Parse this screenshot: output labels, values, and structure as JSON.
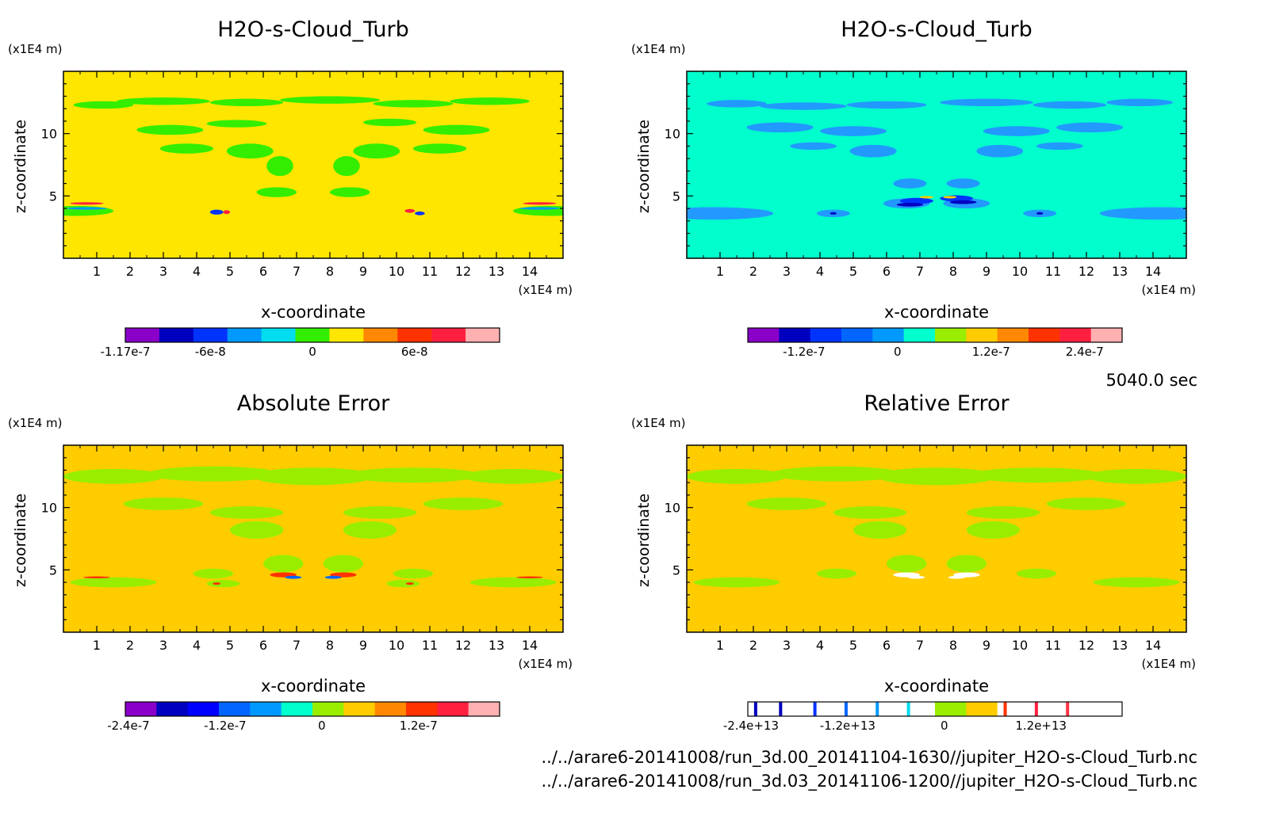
{
  "chart_data": [
    {
      "type": "heatmap",
      "title": "H2O-s-Cloud_Turb",
      "xlabel": "x-coordinate",
      "ylabel": "z-coordinate",
      "x_unit": "(x1E4 m)",
      "y_unit": "(x1E4 m)",
      "x_ticks": [
        "1",
        "2",
        "3",
        "4",
        "5",
        "6",
        "7",
        "8",
        "9",
        "10",
        "11",
        "12",
        "13",
        "14"
      ],
      "y_ticks": [
        "5",
        "10"
      ],
      "xlim": [
        0,
        15
      ],
      "ylim": [
        0,
        15
      ],
      "background_color": "#ffe600",
      "feature_color": "#33ee00",
      "colorbar": {
        "colors": [
          "#8a00c8",
          "#0000c0",
          "#0033ff",
          "#0099ff",
          "#00ddee",
          "#33ee00",
          "#ffe600",
          "#ff8800",
          "#ff3300",
          "#ff2040",
          "#ffb0b0"
        ],
        "tick_labels": [
          "-1.17e-7",
          "-6e-8",
          "0",
          "6e-8"
        ],
        "tick_positions": [
          0,
          2.5,
          5.5,
          8.5
        ]
      }
    },
    {
      "type": "heatmap",
      "title": "H2O-s-Cloud_Turb",
      "xlabel": "x-coordinate",
      "ylabel": "z-coordinate",
      "x_unit": "(x1E4 m)",
      "y_unit": "(x1E4 m)",
      "x_ticks": [
        "1",
        "2",
        "3",
        "4",
        "5",
        "6",
        "7",
        "8",
        "9",
        "10",
        "11",
        "12",
        "13",
        "14"
      ],
      "y_ticks": [
        "5",
        "10"
      ],
      "xlim": [
        0,
        15
      ],
      "ylim": [
        0,
        15
      ],
      "background_color": "#00ffcc",
      "feature_color": "#2299ff",
      "colorbar": {
        "colors": [
          "#8a00c8",
          "#0000c0",
          "#0033ff",
          "#0066ff",
          "#0099ff",
          "#00ffcc",
          "#99ee00",
          "#ffcc00",
          "#ff8800",
          "#ff3300",
          "#ff2040",
          "#ffb0b0"
        ],
        "tick_labels": [
          "-1.2e-7",
          "0",
          "1.2e-7",
          "2.4e-7"
        ],
        "tick_positions": [
          1.8,
          4.8,
          7.8,
          10.8
        ]
      }
    },
    {
      "type": "heatmap",
      "title": "Absolute Error",
      "xlabel": "x-coordinate",
      "ylabel": "z-coordinate",
      "x_unit": "(x1E4 m)",
      "y_unit": "(x1E4 m)",
      "x_ticks": [
        "1",
        "2",
        "3",
        "4",
        "5",
        "6",
        "7",
        "8",
        "9",
        "10",
        "11",
        "12",
        "13",
        "14"
      ],
      "y_ticks": [
        "5",
        "10"
      ],
      "xlim": [
        0,
        15
      ],
      "ylim": [
        0,
        15
      ],
      "background_color": "#ffcc00",
      "feature_color": "#99ee00",
      "colorbar": {
        "colors": [
          "#8a00c8",
          "#0000c0",
          "#0000ff",
          "#0066ff",
          "#0099ff",
          "#00ffcc",
          "#99ee00",
          "#ffcc00",
          "#ff8800",
          "#ff3300",
          "#ff2040",
          "#ffb0b0"
        ],
        "tick_labels": [
          "-2.4e-7",
          "-1.2e-7",
          "0",
          "1.2e-7"
        ],
        "tick_positions": [
          0.1,
          3.2,
          6.3,
          9.4
        ]
      }
    },
    {
      "type": "heatmap",
      "title": "Relative Error",
      "xlabel": "x-coordinate",
      "ylabel": "z-coordinate",
      "x_unit": "(x1E4 m)",
      "y_unit": "(x1E4 m)",
      "x_ticks": [
        "1",
        "2",
        "3",
        "4",
        "5",
        "6",
        "7",
        "8",
        "9",
        "10",
        "11",
        "12",
        "13",
        "14"
      ],
      "y_ticks": [
        "5",
        "10"
      ],
      "xlim": [
        0,
        15
      ],
      "ylim": [
        0,
        15
      ],
      "background_color": "#ffcc00",
      "feature_color": "#99ee00",
      "colorbar": {
        "colors": [
          "#ffffff",
          "#ffffff",
          "#ffffff",
          "#ffffff",
          "#ffffff",
          "#ffffff",
          "#99ee00",
          "#ffcc00",
          "#ffffff",
          "#ffffff",
          "#ffffff",
          "#ffffff"
        ],
        "line_colors": [
          "#0000c0",
          "#0000c0",
          "#0033ff",
          "#0066ff",
          "#0099ff",
          "#00ddee",
          "#ff3300",
          "#ff2040",
          "#ff3344"
        ],
        "tick_labels": [
          "-2.4e+13",
          "-1.2e+13",
          "0",
          "1.2e+13"
        ],
        "tick_positions": [
          0.1,
          3.2,
          6.3,
          9.4
        ]
      }
    }
  ],
  "time_label": "5040.0 sec",
  "files": [
    "../../arare6-20141008/run_3d.00_20141104-1630//jupiter_H2O-s-Cloud_Turb.nc",
    "../../arare6-20141008/run_3d.03_20141106-1200//jupiter_H2O-s-Cloud_Turb.nc"
  ]
}
